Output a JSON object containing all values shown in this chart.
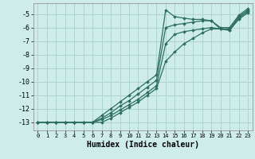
{
  "xlabel": "Humidex (Indice chaleur)",
  "ylabel": "",
  "background_color": "#ceecea",
  "grid_color": "#aed4d1",
  "line_color": "#2d6e62",
  "xlim": [
    -0.5,
    23.5
  ],
  "ylim": [
    -13.6,
    -4.2
  ],
  "yticks": [
    -13,
    -12,
    -11,
    -10,
    -9,
    -8,
    -7,
    -6,
    -5
  ],
  "xticks": [
    0,
    1,
    2,
    3,
    4,
    5,
    6,
    7,
    8,
    9,
    10,
    11,
    12,
    13,
    14,
    15,
    16,
    17,
    18,
    19,
    20,
    21,
    22,
    23
  ],
  "series": [
    {
      "x": [
        0,
        1,
        2,
        3,
        4,
        5,
        6,
        7,
        8,
        9,
        10,
        11,
        12,
        13,
        14,
        15,
        16,
        17,
        18,
        19,
        20,
        21,
        22,
        23
      ],
      "y": [
        -13,
        -13,
        -13,
        -13,
        -13,
        -13,
        -13,
        -12.5,
        -12.0,
        -11.5,
        -11.0,
        -10.5,
        -10.0,
        -9.5,
        -4.7,
        -5.2,
        -5.3,
        -5.4,
        -5.4,
        -5.5,
        -6.0,
        -6.0,
        -5.1,
        -4.6
      ]
    },
    {
      "x": [
        0,
        1,
        2,
        3,
        4,
        5,
        6,
        7,
        8,
        9,
        10,
        11,
        12,
        13,
        14,
        15,
        16,
        17,
        18,
        19,
        20,
        21,
        22,
        23
      ],
      "y": [
        -13,
        -13,
        -13,
        -13,
        -13,
        -13,
        -13,
        -12.7,
        -12.3,
        -11.8,
        -11.4,
        -10.9,
        -10.4,
        -9.9,
        -6.0,
        -5.8,
        -5.7,
        -5.6,
        -5.5,
        -5.5,
        -6.1,
        -6.1,
        -5.2,
        -4.7
      ]
    },
    {
      "x": [
        0,
        1,
        2,
        3,
        4,
        5,
        6,
        7,
        8,
        9,
        10,
        11,
        12,
        13,
        14,
        15,
        16,
        17,
        18,
        19,
        20,
        21,
        22,
        23
      ],
      "y": [
        -13,
        -13,
        -13,
        -13,
        -13,
        -13,
        -13,
        -12.8,
        -12.5,
        -12.1,
        -11.7,
        -11.3,
        -10.8,
        -10.3,
        -7.2,
        -6.5,
        -6.3,
        -6.2,
        -6.1,
        -6.0,
        -6.1,
        -6.2,
        -5.3,
        -4.8
      ]
    },
    {
      "x": [
        0,
        1,
        2,
        3,
        4,
        5,
        6,
        7,
        8,
        9,
        10,
        11,
        12,
        13,
        14,
        15,
        16,
        17,
        18,
        19,
        20,
        21,
        22,
        23
      ],
      "y": [
        -13,
        -13,
        -13,
        -13,
        -13,
        -13,
        -13,
        -13,
        -12.7,
        -12.3,
        -11.9,
        -11.5,
        -11.0,
        -10.5,
        -8.5,
        -7.8,
        -7.2,
        -6.8,
        -6.4,
        -6.1,
        -6.1,
        -6.2,
        -5.4,
        -4.9
      ]
    }
  ]
}
